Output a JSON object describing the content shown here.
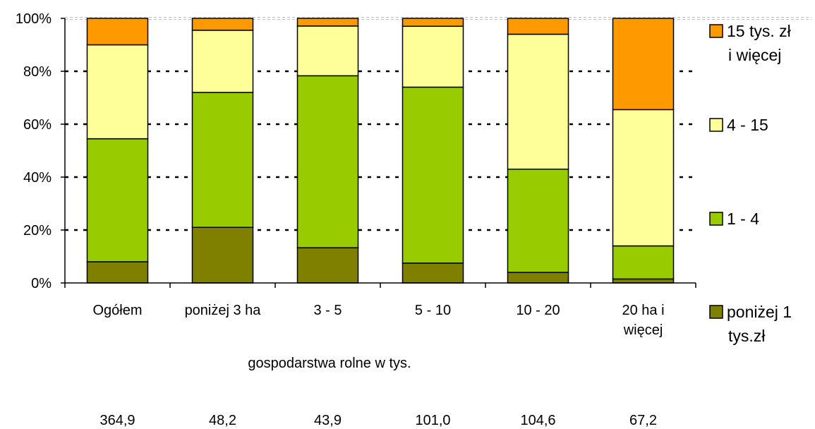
{
  "chart_data": {
    "type": "bar",
    "stacked": true,
    "percent": true,
    "categories": [
      "Ogółem",
      "poniżej 3 ha",
      "3 - 5",
      "5 - 10",
      "10 - 20",
      "20 ha i więcej"
    ],
    "category_lines": [
      [
        "Ogółem"
      ],
      [
        "poniżej 3 ha"
      ],
      [
        "3 - 5"
      ],
      [
        "5 - 10"
      ],
      [
        "10 - 20"
      ],
      [
        "20 ha i",
        "więcej"
      ]
    ],
    "series": [
      {
        "name": "poniżej 1 tys.zł",
        "legend_lines": [
          "poniżej 1",
          "tys.zł"
        ],
        "color": "#808000",
        "values": [
          8,
          21,
          13.3,
          7.5,
          4,
          1.5
        ]
      },
      {
        "name": "1 - 4",
        "legend_lines": [
          "1 - 4"
        ],
        "color": "#99CC00",
        "values": [
          46.5,
          51,
          65,
          66.5,
          39,
          12.5
        ]
      },
      {
        "name": "4 - 15",
        "legend_lines": [
          "4 - 15"
        ],
        "color": "#FFFF99",
        "values": [
          35.5,
          23.5,
          18.8,
          23,
          51,
          51.5
        ]
      },
      {
        "name": "15 tys. zł i więcej",
        "legend_lines": [
          "15 tys. zł",
          "i więcej"
        ],
        "color": "#FF9900",
        "values": [
          10,
          4.5,
          2.9,
          3,
          6,
          34.5
        ]
      }
    ],
    "ylim": [
      0,
      100
    ],
    "yticks": [
      "0%",
      "20%",
      "40%",
      "60%",
      "80%",
      "100%"
    ],
    "grid": "dotted horizontal",
    "legend_position": "right",
    "xlabel": "gospodarstwa rolne w tys.",
    "farm_counts": [
      "364,9",
      "48,2",
      "43,9",
      "101,0",
      "104,6",
      "67,2"
    ]
  }
}
